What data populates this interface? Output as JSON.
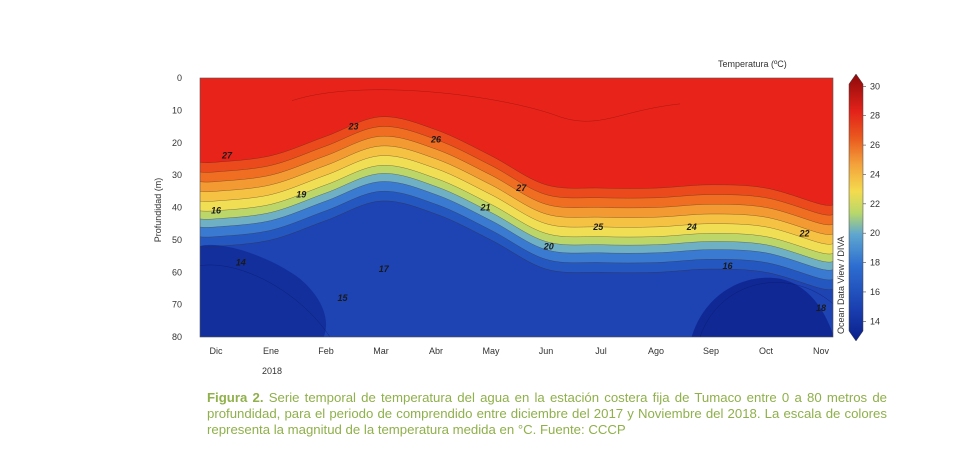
{
  "chart_data": {
    "type": "heatmap",
    "ylabel": "Profundidad (m)",
    "y_ticks": [
      0,
      10,
      20,
      30,
      40,
      50,
      60,
      70,
      80
    ],
    "ylim": [
      0,
      80
    ],
    "y_inverted": true,
    "x_ticks": [
      "Dic",
      "Ene",
      "Feb",
      "Mar",
      "Abr",
      "May",
      "Jun",
      "Jul",
      "Ago",
      "Sep",
      "Oct",
      "Nov"
    ],
    "x_sublabel": "2018",
    "colorbar_title": "Temperatura (ºC)",
    "colorbar_ticks": [
      14,
      16,
      18,
      20,
      22,
      24,
      26,
      28,
      30
    ],
    "colorbar_range": [
      13,
      30.5
    ],
    "side_label": "Ocean Data View / DIVA",
    "colors": [
      "#0a1f8a",
      "#1a4fc4",
      "#3f86d6",
      "#9fcf6a",
      "#f6d94a",
      "#f3a33c",
      "#e8521c",
      "#e8231a",
      "#c41210",
      "#8c0a0a"
    ],
    "thermocline_depth_20C": {
      "months": [
        0,
        1,
        2,
        3,
        4,
        5,
        6,
        7,
        8,
        9,
        10,
        11
      ],
      "depth_m": [
        42,
        40,
        34,
        28,
        32,
        40,
        49,
        50,
        50,
        49,
        50,
        55
      ]
    },
    "contour_labels": [
      {
        "text": "27",
        "month": 0.2,
        "depth": 24
      },
      {
        "text": "23",
        "month": 2.5,
        "depth": 15
      },
      {
        "text": "26",
        "month": 4.0,
        "depth": 19
      },
      {
        "text": "19",
        "month": 1.55,
        "depth": 36
      },
      {
        "text": "27",
        "month": 5.55,
        "depth": 34
      },
      {
        "text": "21",
        "month": 4.9,
        "depth": 40
      },
      {
        "text": "25",
        "month": 6.95,
        "depth": 46
      },
      {
        "text": "24",
        "month": 8.65,
        "depth": 46
      },
      {
        "text": "22",
        "month": 10.7,
        "depth": 48
      },
      {
        "text": "20",
        "month": 6.05,
        "depth": 52
      },
      {
        "text": "16",
        "month": 0.0,
        "depth": 41
      },
      {
        "text": "14",
        "month": 0.45,
        "depth": 57
      },
      {
        "text": "17",
        "month": 3.05,
        "depth": 59
      },
      {
        "text": "16",
        "month": 9.3,
        "depth": 58
      },
      {
        "text": "15",
        "month": 2.3,
        "depth": 68
      },
      {
        "text": "18",
        "month": 11.0,
        "depth": 71
      }
    ]
  },
  "caption": {
    "label": "Figura 2.",
    "text": " Serie temporal de temperatura del agua en la estación costera fija de Tumaco entre 0 a 80 metros de profundidad, para el periodo de comprendido entre diciembre del 2017 y Noviembre del 2018. La escala de colores representa la magnitud de la temperatura medida en °C. Fuente: CCCP"
  }
}
